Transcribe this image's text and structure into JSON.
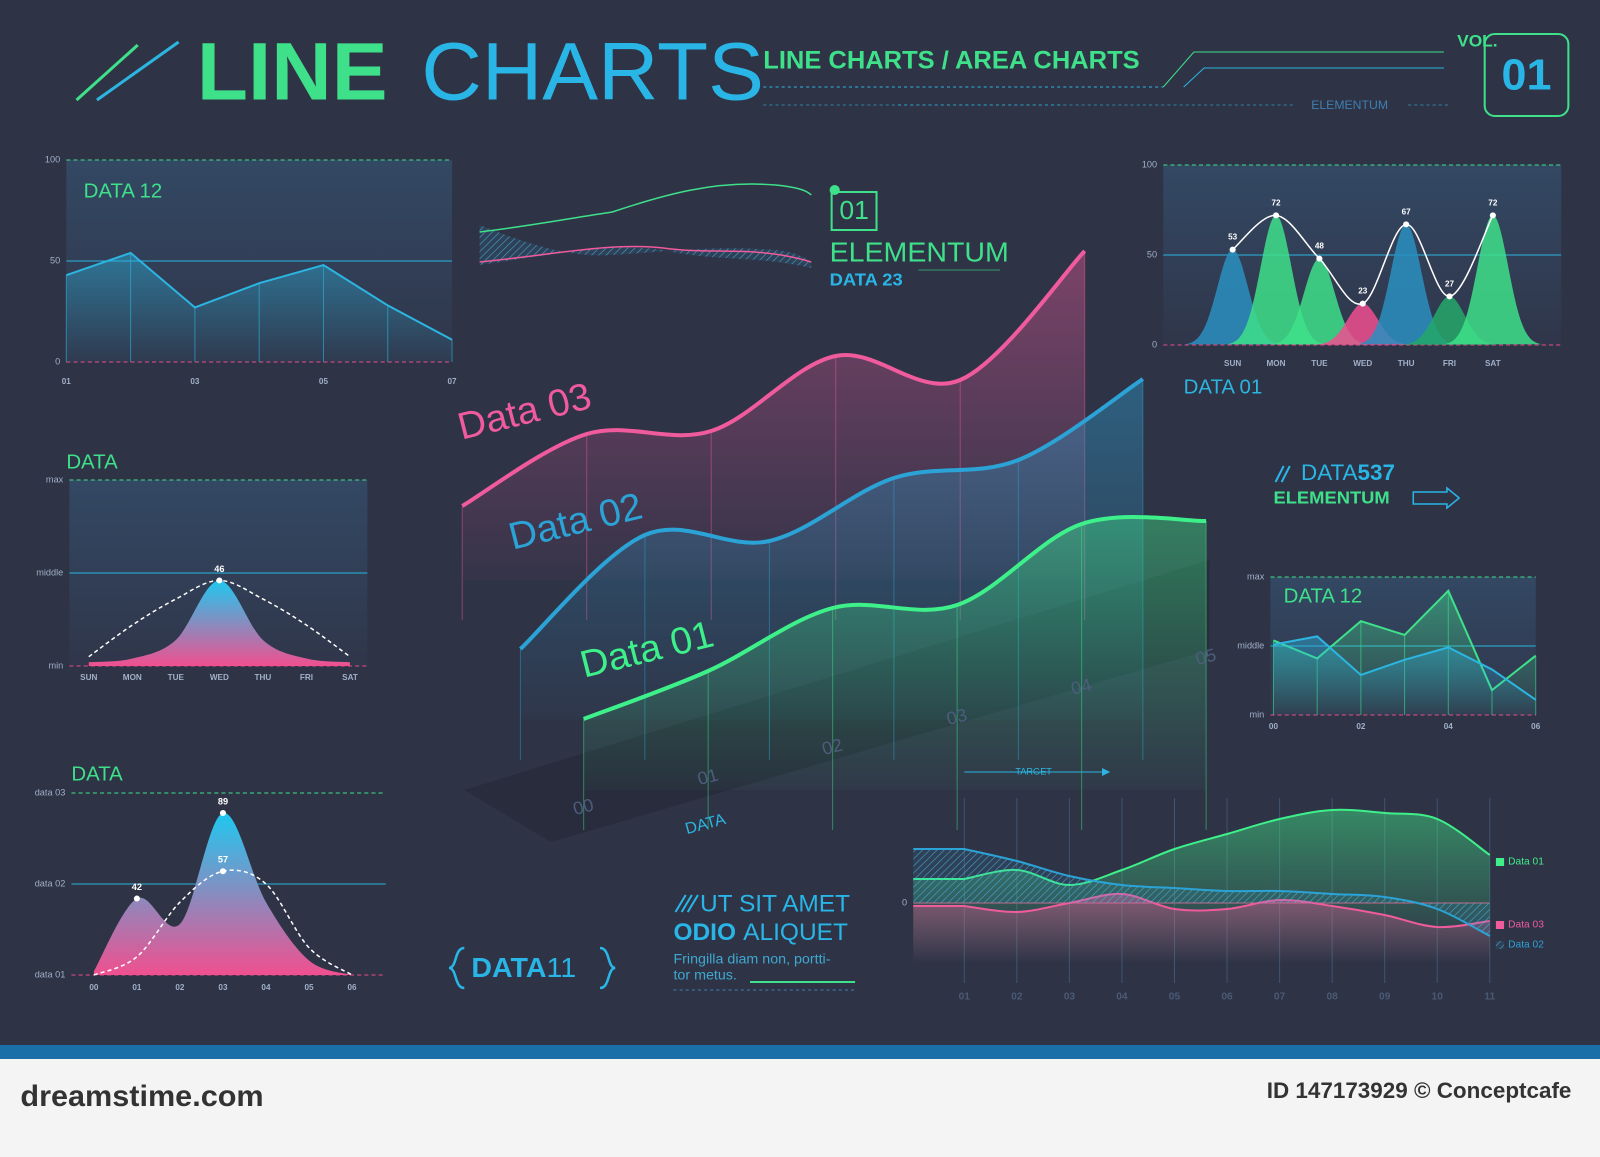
{
  "header": {
    "title_line": "LINE",
    "title_charts": "CHARTS",
    "subtitle": "LINE CHARTS / AREA CHARTS",
    "vol": "VOL.",
    "vol_number": "01",
    "tag": "ELEMENTUM"
  },
  "badge": {
    "number": "01",
    "title": "ELEMENTUM",
    "subtitle": "DATA 23"
  },
  "data537": {
    "word": "DATA",
    "number": "537",
    "tag": "ELEMENTUM"
  },
  "data11": {
    "word": "DATA",
    "number": "11"
  },
  "text_block": {
    "line_1": "UT SIT AMET",
    "line_2_bold": "ODIO",
    "line_2": "ALIQUET",
    "line_3": "Fringilla diam non, portti-",
    "line_4": "tor metus."
  },
  "footer": {
    "site": "dreamstime.com",
    "credit": "ID 147173929 © Conceptcafe"
  },
  "chart_data": [
    {
      "type": "area",
      "title": "DATA 12",
      "categories": [
        "01",
        null,
        "03",
        null,
        "05",
        null,
        "07"
      ],
      "values": [
        43,
        54,
        27,
        39,
        48,
        28,
        11
      ],
      "color": "#2bb5e0",
      "ylim": [
        0,
        100
      ],
      "yticks": [
        0,
        50,
        100
      ],
      "grid": true
    },
    {
      "type": "bell",
      "title": "DATA",
      "categories": [
        "SUN",
        "MON",
        "TUE",
        "WED",
        "THU",
        "FRI",
        "SAT"
      ],
      "series": [
        {
          "color": "#ef5b9c",
          "values": [
            2,
            4,
            14,
            46,
            14,
            4,
            2
          ],
          "value_labels": [
            null,
            null,
            null,
            "46",
            null,
            null,
            null
          ]
        },
        {
          "color": "#ffffff",
          "dashed": true,
          "values": [
            5,
            22,
            36,
            46,
            36,
            22,
            5
          ]
        }
      ],
      "ylim": [
        0,
        100
      ],
      "yticks": [
        {
          "value": 0,
          "label": "min"
        },
        {
          "value": 50,
          "label": "middle"
        },
        {
          "value": 100,
          "label": "max"
        }
      ],
      "grid": true
    },
    {
      "type": "bell",
      "title": "DATA",
      "categories": [
        "00",
        "01",
        "02",
        "03",
        "04",
        "05",
        "06"
      ],
      "series": [
        {
          "color": "#ef5b9c",
          "values": [
            2,
            42,
            28,
            89,
            40,
            8,
            0
          ],
          "value_labels": [
            null,
            "42",
            null,
            "89",
            null,
            null,
            null
          ]
        },
        {
          "color": "#ffffff",
          "dashed": true,
          "values": [
            0,
            10,
            40,
            57,
            50,
            15,
            0
          ],
          "value_labels": [
            null,
            null,
            null,
            "57",
            null,
            null,
            null
          ]
        }
      ],
      "ylim": [
        0,
        100
      ],
      "yticks": [
        {
          "value": 0,
          "label": "data 01"
        },
        {
          "value": 50,
          "label": "data 02"
        },
        {
          "value": 100,
          "label": "data 03"
        }
      ],
      "grid": true
    },
    {
      "type": "line3d",
      "categories": [
        "00",
        "01",
        "02",
        "03",
        "04",
        "05"
      ],
      "xlabel": "DATA",
      "ylim": [
        0,
        120
      ],
      "series": [
        {
          "name": "Data 03",
          "color": "#ef5b9c",
          "values": [
            18,
            42,
            43,
            68,
            60,
            103
          ]
        },
        {
          "name": "Data 02",
          "color": "#2ba3d6",
          "values": [
            17,
            55,
            53,
            74,
            80,
            107
          ]
        },
        {
          "name": "Data 01",
          "color": "#3ef08a",
          "values": [
            17,
            33,
            54,
            55,
            82,
            83
          ]
        }
      ]
    },
    {
      "type": "peaks",
      "title": "DATA 01",
      "categories": [
        "SUN",
        "MON",
        "TUE",
        "WED",
        "THU",
        "FRI",
        "SAT"
      ],
      "values": [
        53,
        72,
        48,
        23,
        67,
        27,
        72
      ],
      "colors": [
        "#2a8fc0",
        "#3ee08a",
        "#3ee08a",
        "#ef4f8f",
        "#2a8fc0",
        "#25a86a",
        "#3ee08a"
      ],
      "ylim": [
        0,
        100
      ],
      "yticks": [
        0,
        50,
        100
      ],
      "grid": true
    },
    {
      "type": "area",
      "title": "DATA 12",
      "categories": [
        "00",
        null,
        "02",
        null,
        "04",
        null,
        "06"
      ],
      "series": [
        {
          "color": "#3ee08a",
          "values": [
            54,
            41,
            68,
            58,
            90,
            18,
            43
          ]
        },
        {
          "color": "#2bb5e0",
          "values": [
            51,
            57,
            29,
            40,
            49,
            33,
            11
          ]
        }
      ],
      "ylim": [
        0,
        100
      ],
      "yticks": [
        {
          "value": 0,
          "label": "min"
        },
        {
          "value": 50,
          "label": "middle"
        },
        {
          "value": 100,
          "label": "max"
        }
      ],
      "grid": true
    },
    {
      "type": "multiarea",
      "annotation": "TARGET",
      "categories": [
        "01",
        "02",
        "03",
        "04",
        "05",
        "06",
        "07",
        "08",
        "09",
        "10",
        "11"
      ],
      "series": [
        {
          "name": "Data 01",
          "color": "#3ef08a",
          "values": [
            8,
            11,
            6,
            11,
            18,
            23,
            28,
            31,
            30,
            28,
            16
          ]
        },
        {
          "name": "Data 03",
          "color": "#ef5b9c",
          "values": [
            -1,
            -3,
            0,
            3,
            -2,
            -2,
            1,
            -1,
            -4,
            -8,
            -6
          ]
        },
        {
          "name": "Data 02",
          "color": "#2ba3d6",
          "hatched": true,
          "values": [
            18,
            14,
            9,
            6,
            5,
            4,
            4,
            3,
            2,
            -2,
            -11
          ]
        }
      ],
      "ylim": [
        -20,
        35
      ],
      "yticks": [
        0
      ],
      "grid": true
    }
  ]
}
